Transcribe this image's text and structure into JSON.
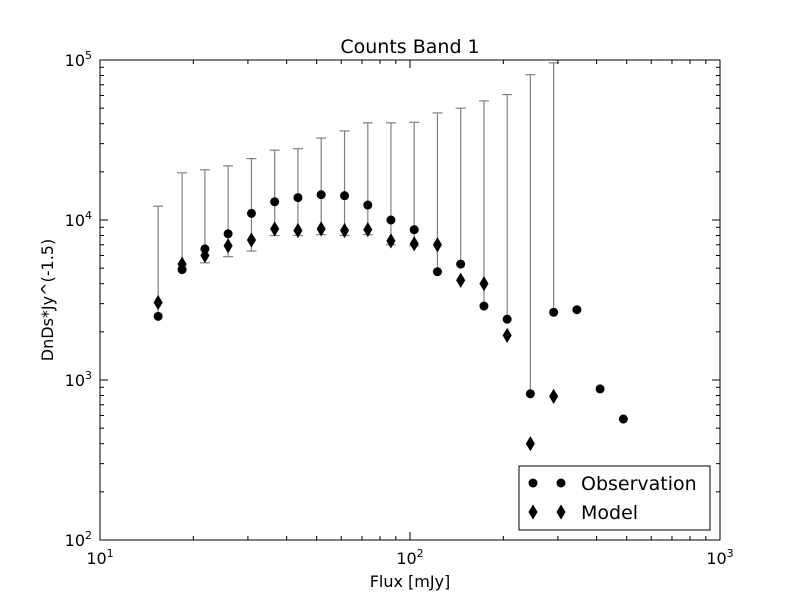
{
  "chart_data": {
    "type": "scatter",
    "title": "Counts Band 1",
    "xlabel": "Flux [mJy]",
    "ylabel": "DnDs*Jy^(-1.5)",
    "x_scale": "log",
    "y_scale": "log",
    "xlim": [
      10,
      1000
    ],
    "ylim": [
      100,
      100000
    ],
    "x_ticks": [
      {
        "base": "10",
        "exp": "1",
        "value": 10
      },
      {
        "base": "10",
        "exp": "2",
        "value": 100
      },
      {
        "base": "10",
        "exp": "3",
        "value": 1000
      }
    ],
    "y_ticks": [
      {
        "base": "10",
        "exp": "2",
        "value": 100
      },
      {
        "base": "10",
        "exp": "3",
        "value": 1000
      },
      {
        "base": "10",
        "exp": "4",
        "value": 10000
      },
      {
        "base": "10",
        "exp": "5",
        "value": 100000
      }
    ],
    "grid": false,
    "legend_position": "bottom-right",
    "legend": [
      {
        "label": "Observation",
        "marker": "circle"
      },
      {
        "label": "Model",
        "marker": "diamond"
      }
    ],
    "series": [
      {
        "name": "Observation",
        "marker": "circle",
        "color": "#000000",
        "x": [
          15.4,
          18.4,
          21.8,
          25.9,
          30.8,
          36.6,
          43.5,
          51.7,
          61.5,
          73.1,
          86.8,
          103.2,
          122.6,
          145.7,
          173.2,
          205.8,
          244.5,
          290.6,
          345.4,
          410.4,
          487.8
        ],
        "y": [
          2500,
          4900,
          6600,
          8200,
          11000,
          13000,
          13800,
          14400,
          14200,
          12400,
          10000,
          8700,
          4750,
          5300,
          2900,
          2400,
          820,
          2650,
          2750,
          880,
          570
        ],
        "error_high": [
          12200,
          19700,
          20600,
          21800,
          24200,
          27300,
          27900,
          32500,
          36000,
          40500,
          40500,
          40800,
          46700,
          50000,
          55500,
          60800,
          81000,
          96000,
          null,
          null,
          null
        ],
        "error_low": [
          null,
          null,
          5400,
          5900,
          6400,
          8000,
          8000,
          8100,
          8000,
          8100,
          7000,
          6900,
          null,
          null,
          null,
          null,
          null,
          null,
          null,
          null,
          null
        ]
      },
      {
        "name": "Model",
        "marker": "diamond",
        "color": "#000000",
        "x": [
          15.4,
          18.4,
          21.8,
          25.9,
          30.8,
          36.6,
          43.5,
          51.7,
          61.5,
          73.1,
          86.8,
          103.2,
          122.6,
          145.7,
          173.2,
          205.8,
          244.5,
          290.6
        ],
        "y": [
          3050,
          5300,
          6000,
          6900,
          7500,
          8800,
          8600,
          8800,
          8600,
          8700,
          7400,
          7100,
          7000,
          4200,
          4000,
          1900,
          400,
          790
        ]
      }
    ]
  }
}
